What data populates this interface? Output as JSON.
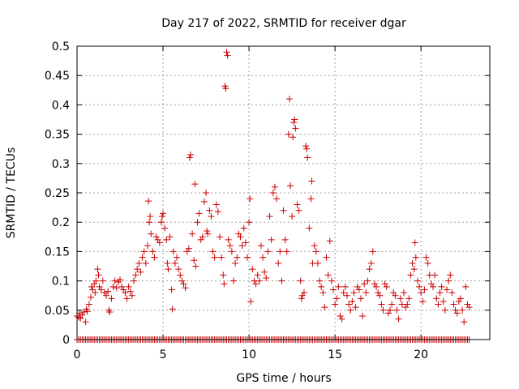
{
  "chart_data": {
    "type": "scatter",
    "title": "Day 217 of 2022, SRMTID for receiver dgar",
    "xlabel": "GPS time / hours",
    "ylabel": "SRMTID / TECUs",
    "xlim": [
      0,
      24
    ],
    "ylim": [
      0,
      0.5
    ],
    "xticks": [
      0,
      5,
      10,
      15,
      20
    ],
    "xtick_labels": [
      "0",
      "5",
      "10",
      "15",
      "20"
    ],
    "yticks": [
      0,
      0.05,
      0.1,
      0.15,
      0.2,
      0.25,
      0.3,
      0.35,
      0.4,
      0.45,
      0.5
    ],
    "ytick_labels": [
      "0",
      "0.05",
      "0.1",
      "0.15",
      "0.2",
      "0.25",
      "0.3",
      "0.35",
      "0.4",
      "0.45",
      "0.5"
    ],
    "grid": true,
    "marker": "+",
    "color": "#cc0000",
    "zero_line_points": {
      "x_start": 0,
      "x_end": 22.8,
      "x_step": 0.1,
      "y": 0
    },
    "series": [
      {
        "name": "SRMTID",
        "points": [
          [
            0.0,
            0.04
          ],
          [
            0.1,
            0.038
          ],
          [
            0.15,
            0.045
          ],
          [
            0.2,
            0.036
          ],
          [
            0.3,
            0.042
          ],
          [
            0.4,
            0.047
          ],
          [
            0.5,
            0.03
          ],
          [
            0.55,
            0.052
          ],
          [
            0.6,
            0.048
          ],
          [
            0.7,
            0.06
          ],
          [
            0.8,
            0.072
          ],
          [
            0.85,
            0.09
          ],
          [
            0.9,
            0.085
          ],
          [
            1.0,
            0.095
          ],
          [
            1.05,
            0.08
          ],
          [
            1.1,
            0.1
          ],
          [
            1.2,
            0.12
          ],
          [
            1.25,
            0.11
          ],
          [
            1.3,
            0.09
          ],
          [
            1.4,
            0.085
          ],
          [
            1.5,
            0.1
          ],
          [
            1.6,
            0.08
          ],
          [
            1.7,
            0.075
          ],
          [
            1.8,
            0.082
          ],
          [
            1.85,
            0.05
          ],
          [
            1.9,
            0.047
          ],
          [
            2.0,
            0.07
          ],
          [
            2.1,
            0.09
          ],
          [
            2.2,
            0.1
          ],
          [
            2.3,
            0.088
          ],
          [
            2.4,
            0.098
          ],
          [
            2.5,
            0.102
          ],
          [
            2.6,
            0.09
          ],
          [
            2.7,
            0.085
          ],
          [
            2.8,
            0.08
          ],
          [
            2.9,
            0.07
          ],
          [
            3.0,
            0.09
          ],
          [
            3.1,
            0.082
          ],
          [
            3.2,
            0.075
          ],
          [
            3.3,
            0.1
          ],
          [
            3.4,
            0.11
          ],
          [
            3.5,
            0.12
          ],
          [
            3.6,
            0.13
          ],
          [
            3.7,
            0.115
          ],
          [
            3.8,
            0.14
          ],
          [
            3.9,
            0.15
          ],
          [
            4.0,
            0.13
          ],
          [
            4.1,
            0.16
          ],
          [
            4.15,
            0.236
          ],
          [
            4.2,
            0.2
          ],
          [
            4.25,
            0.21
          ],
          [
            4.3,
            0.18
          ],
          [
            4.4,
            0.15
          ],
          [
            4.5,
            0.14
          ],
          [
            4.6,
            0.175
          ],
          [
            4.7,
            0.17
          ],
          [
            4.8,
            0.165
          ],
          [
            4.9,
            0.2
          ],
          [
            4.95,
            0.21
          ],
          [
            5.0,
            0.215
          ],
          [
            5.1,
            0.19
          ],
          [
            5.2,
            0.17
          ],
          [
            5.25,
            0.13
          ],
          [
            5.3,
            0.12
          ],
          [
            5.4,
            0.175
          ],
          [
            5.5,
            0.085
          ],
          [
            5.55,
            0.052
          ],
          [
            5.6,
            0.15
          ],
          [
            5.7,
            0.13
          ],
          [
            5.8,
            0.14
          ],
          [
            5.9,
            0.12
          ],
          [
            6.0,
            0.11
          ],
          [
            6.1,
            0.1
          ],
          [
            6.2,
            0.095
          ],
          [
            6.3,
            0.088
          ],
          [
            6.4,
            0.15
          ],
          [
            6.5,
            0.155
          ],
          [
            6.55,
            0.31
          ],
          [
            6.6,
            0.315
          ],
          [
            6.7,
            0.18
          ],
          [
            6.8,
            0.135
          ],
          [
            6.85,
            0.265
          ],
          [
            6.9,
            0.125
          ],
          [
            7.0,
            0.2
          ],
          [
            7.1,
            0.215
          ],
          [
            7.2,
            0.17
          ],
          [
            7.3,
            0.175
          ],
          [
            7.4,
            0.235
          ],
          [
            7.5,
            0.25
          ],
          [
            7.55,
            0.185
          ],
          [
            7.6,
            0.18
          ],
          [
            7.7,
            0.22
          ],
          [
            7.8,
            0.21
          ],
          [
            7.9,
            0.15
          ],
          [
            8.0,
            0.14
          ],
          [
            8.1,
            0.23
          ],
          [
            8.2,
            0.218
          ],
          [
            8.3,
            0.175
          ],
          [
            8.4,
            0.14
          ],
          [
            8.5,
            0.11
          ],
          [
            8.55,
            0.095
          ],
          [
            8.6,
            0.432
          ],
          [
            8.65,
            0.428
          ],
          [
            8.7,
            0.49
          ],
          [
            8.75,
            0.484
          ],
          [
            8.8,
            0.17
          ],
          [
            8.9,
            0.16
          ],
          [
            9.0,
            0.15
          ],
          [
            9.1,
            0.1
          ],
          [
            9.2,
            0.13
          ],
          [
            9.3,
            0.14
          ],
          [
            9.4,
            0.18
          ],
          [
            9.5,
            0.175
          ],
          [
            9.6,
            0.16
          ],
          [
            9.7,
            0.19
          ],
          [
            9.8,
            0.165
          ],
          [
            9.9,
            0.14
          ],
          [
            10.0,
            0.2
          ],
          [
            10.05,
            0.24
          ],
          [
            10.1,
            0.065
          ],
          [
            10.2,
            0.12
          ],
          [
            10.3,
            0.1
          ],
          [
            10.4,
            0.095
          ],
          [
            10.5,
            0.11
          ],
          [
            10.6,
            0.1
          ],
          [
            10.7,
            0.16
          ],
          [
            10.8,
            0.14
          ],
          [
            10.9,
            0.115
          ],
          [
            11.0,
            0.105
          ],
          [
            11.1,
            0.15
          ],
          [
            11.2,
            0.21
          ],
          [
            11.3,
            0.17
          ],
          [
            11.4,
            0.25
          ],
          [
            11.5,
            0.26
          ],
          [
            11.6,
            0.24
          ],
          [
            11.7,
            0.13
          ],
          [
            11.8,
            0.15
          ],
          [
            11.9,
            0.1
          ],
          [
            12.0,
            0.22
          ],
          [
            12.1,
            0.17
          ],
          [
            12.2,
            0.15
          ],
          [
            12.3,
            0.35
          ],
          [
            12.35,
            0.41
          ],
          [
            12.4,
            0.262
          ],
          [
            12.5,
            0.21
          ],
          [
            12.55,
            0.345
          ],
          [
            12.6,
            0.37
          ],
          [
            12.65,
            0.375
          ],
          [
            12.7,
            0.36
          ],
          [
            12.8,
            0.23
          ],
          [
            12.9,
            0.22
          ],
          [
            13.0,
            0.1
          ],
          [
            13.05,
            0.07
          ],
          [
            13.1,
            0.075
          ],
          [
            13.2,
            0.08
          ],
          [
            13.3,
            0.33
          ],
          [
            13.35,
            0.325
          ],
          [
            13.4,
            0.31
          ],
          [
            13.5,
            0.19
          ],
          [
            13.6,
            0.24
          ],
          [
            13.65,
            0.27
          ],
          [
            13.7,
            0.13
          ],
          [
            13.8,
            0.16
          ],
          [
            13.9,
            0.15
          ],
          [
            14.0,
            0.13
          ],
          [
            14.1,
            0.1
          ],
          [
            14.2,
            0.09
          ],
          [
            14.3,
            0.08
          ],
          [
            14.4,
            0.055
          ],
          [
            14.5,
            0.14
          ],
          [
            14.6,
            0.11
          ],
          [
            14.7,
            0.168
          ],
          [
            14.8,
            0.1
          ],
          [
            14.9,
            0.085
          ],
          [
            15.0,
            0.06
          ],
          [
            15.1,
            0.07
          ],
          [
            15.2,
            0.09
          ],
          [
            15.3,
            0.04
          ],
          [
            15.4,
            0.035
          ],
          [
            15.5,
            0.08
          ],
          [
            15.6,
            0.09
          ],
          [
            15.7,
            0.075
          ],
          [
            15.8,
            0.06
          ],
          [
            15.9,
            0.05
          ],
          [
            16.0,
            0.065
          ],
          [
            16.1,
            0.08
          ],
          [
            16.2,
            0.055
          ],
          [
            16.3,
            0.09
          ],
          [
            16.4,
            0.085
          ],
          [
            16.5,
            0.07
          ],
          [
            16.6,
            0.04
          ],
          [
            16.7,
            0.095
          ],
          [
            16.8,
            0.08
          ],
          [
            16.9,
            0.1
          ],
          [
            17.0,
            0.12
          ],
          [
            17.1,
            0.13
          ],
          [
            17.2,
            0.15
          ],
          [
            17.3,
            0.095
          ],
          [
            17.4,
            0.09
          ],
          [
            17.5,
            0.08
          ],
          [
            17.6,
            0.075
          ],
          [
            17.7,
            0.06
          ],
          [
            17.8,
            0.05
          ],
          [
            17.9,
            0.095
          ],
          [
            18.0,
            0.09
          ],
          [
            18.1,
            0.045
          ],
          [
            18.2,
            0.05
          ],
          [
            18.3,
            0.06
          ],
          [
            18.4,
            0.08
          ],
          [
            18.5,
            0.075
          ],
          [
            18.6,
            0.05
          ],
          [
            18.7,
            0.035
          ],
          [
            18.8,
            0.07
          ],
          [
            18.9,
            0.06
          ],
          [
            19.0,
            0.08
          ],
          [
            19.1,
            0.055
          ],
          [
            19.2,
            0.06
          ],
          [
            19.3,
            0.07
          ],
          [
            19.4,
            0.11
          ],
          [
            19.5,
            0.13
          ],
          [
            19.6,
            0.12
          ],
          [
            19.65,
            0.165
          ],
          [
            19.7,
            0.14
          ],
          [
            19.8,
            0.1
          ],
          [
            19.9,
            0.09
          ],
          [
            20.0,
            0.08
          ],
          [
            20.1,
            0.065
          ],
          [
            20.2,
            0.085
          ],
          [
            20.3,
            0.14
          ],
          [
            20.4,
            0.13
          ],
          [
            20.5,
            0.11
          ],
          [
            20.6,
            0.095
          ],
          [
            20.7,
            0.09
          ],
          [
            20.8,
            0.11
          ],
          [
            20.9,
            0.07
          ],
          [
            21.0,
            0.06
          ],
          [
            21.1,
            0.08
          ],
          [
            21.2,
            0.09
          ],
          [
            21.3,
            0.065
          ],
          [
            21.4,
            0.05
          ],
          [
            21.5,
            0.085
          ],
          [
            21.6,
            0.1
          ],
          [
            21.7,
            0.11
          ],
          [
            21.8,
            0.08
          ],
          [
            21.9,
            0.06
          ],
          [
            22.0,
            0.05
          ],
          [
            22.1,
            0.045
          ],
          [
            22.2,
            0.065
          ],
          [
            22.3,
            0.07
          ],
          [
            22.4,
            0.05
          ],
          [
            22.5,
            0.03
          ],
          [
            22.6,
            0.09
          ],
          [
            22.7,
            0.06
          ],
          [
            22.8,
            0.055
          ]
        ]
      }
    ]
  }
}
